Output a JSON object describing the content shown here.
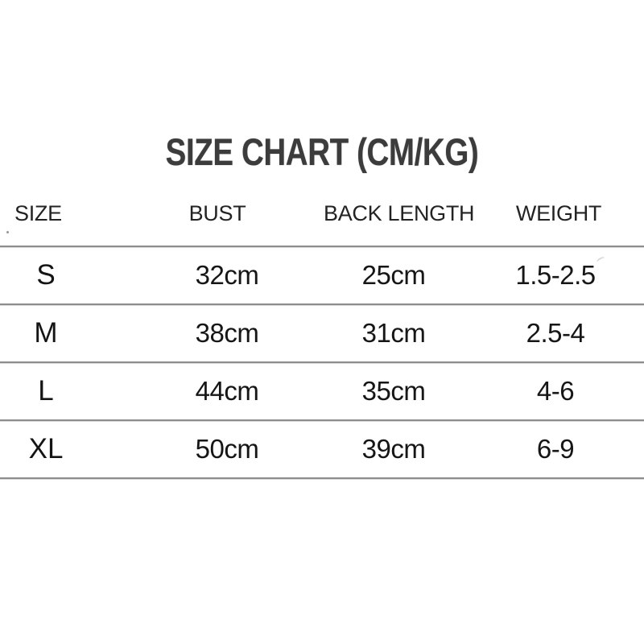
{
  "title": "SIZE CHART (CM/KG)",
  "table": {
    "columns": [
      "SIZE",
      "BUST",
      "BACK LENGTH",
      "WEIGHT"
    ],
    "rows": [
      {
        "cells": [
          "S",
          "32cm",
          "25cm",
          "1.5-2.5"
        ]
      },
      {
        "cells": [
          "M",
          "38cm",
          "31cm",
          "2.5-4"
        ]
      },
      {
        "cells": [
          "L",
          "44cm",
          "35cm",
          "4-6"
        ]
      },
      {
        "cells": [
          "XL",
          "50cm",
          "39cm",
          "6-9"
        ]
      }
    ]
  },
  "chart_data": {
    "type": "table",
    "title": "SIZE CHART (CM/KG)",
    "columns": [
      "SIZE",
      "BUST",
      "BACK LENGTH",
      "WEIGHT"
    ],
    "units": {
      "bust": "cm",
      "back_length": "cm",
      "weight": "kg"
    },
    "rows": [
      [
        "S",
        "32cm",
        "25cm",
        "1.5-2.5"
      ],
      [
        "M",
        "38cm",
        "31cm",
        "2.5-4"
      ],
      [
        "L",
        "44cm",
        "35cm",
        "4-6"
      ],
      [
        "XL",
        "50cm",
        "39cm",
        "6-9"
      ]
    ]
  },
  "colors": {
    "background": "#ffffff",
    "title_text": "#3c3c3c",
    "header_text": "#232323",
    "value_text": "#161616",
    "divider": "#8d8d8d",
    "divider_shadow": "#d8d8d8"
  }
}
